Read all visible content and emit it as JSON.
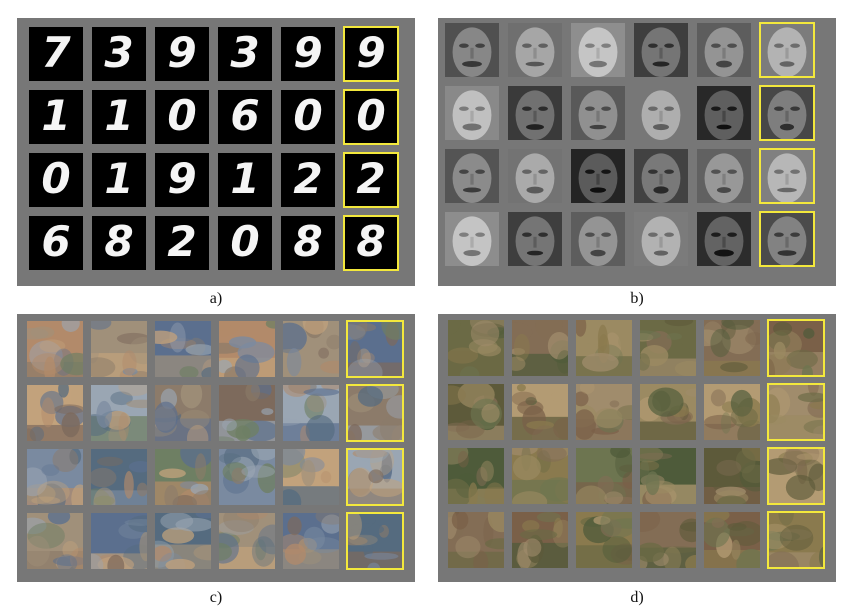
{
  "captions": {
    "a": "a)",
    "b": "b)",
    "c": "c)",
    "d": "d)"
  },
  "highlight_color": "#f3e83c",
  "panel_color": "#777777",
  "panels": {
    "a": {
      "kind": "mnist-digits",
      "rows": [
        [
          "7",
          "3",
          "9",
          "3",
          "9",
          "9"
        ],
        [
          "1",
          "1",
          "0",
          "6",
          "0",
          "0"
        ],
        [
          "0",
          "1",
          "9",
          "1",
          "2",
          "2"
        ],
        [
          "6",
          "8",
          "2",
          "0",
          "8",
          "8"
        ]
      ]
    },
    "b": {
      "kind": "grayscale-faces"
    },
    "c": {
      "kind": "cifar-generated"
    },
    "d": {
      "kind": "stl-generated"
    }
  }
}
